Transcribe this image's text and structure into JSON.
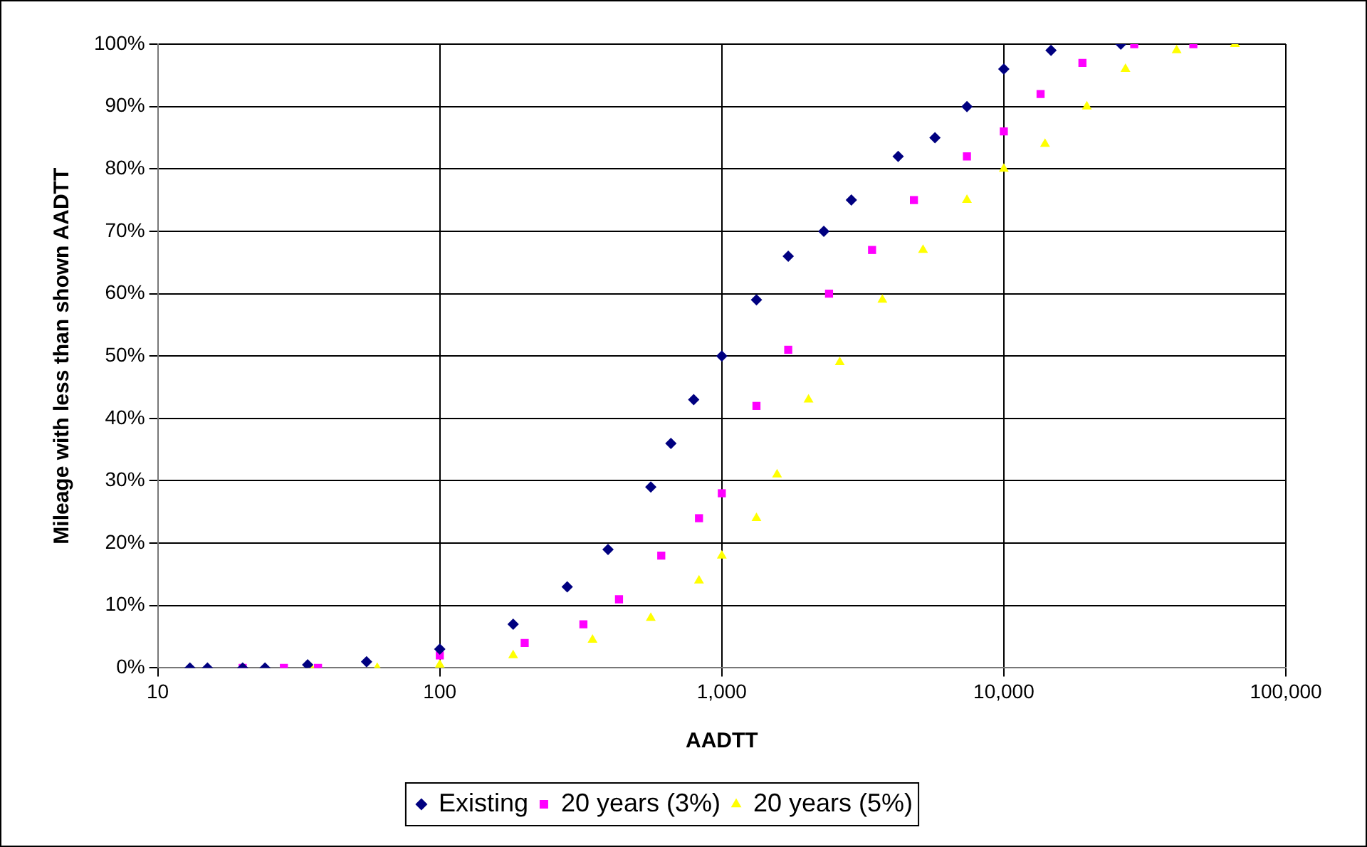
{
  "chart_data": {
    "type": "scatter",
    "xlabel": "AADTT",
    "ylabel": "Mileage with less than shown AADTT",
    "log": "x",
    "grid": true,
    "legend": "bottom",
    "xlim": [
      10,
      100000
    ],
    "xticks": [
      10,
      100,
      {
        "value": 1000,
        "label": "1,000"
      },
      {
        "value": 10000,
        "label": "10,000"
      },
      {
        "value": 100000,
        "label": "100,000"
      }
    ],
    "ylim": [
      0,
      100
    ],
    "yticks": [
      {
        "value": 0,
        "label": "0%"
      },
      {
        "value": 10,
        "label": "10%"
      },
      {
        "value": 20,
        "label": "20%"
      },
      {
        "value": 30,
        "label": "30%"
      },
      {
        "value": 40,
        "label": "40%"
      },
      {
        "value": 50,
        "label": "50%"
      },
      {
        "value": 60,
        "label": "60%"
      },
      {
        "value": 70,
        "label": "70%"
      },
      {
        "value": 80,
        "label": "80%"
      },
      {
        "value": 90,
        "label": "90%"
      },
      {
        "value": 100,
        "label": "100%"
      }
    ],
    "series": [
      {
        "name": "Existing",
        "color": "#000080",
        "marker": "diamond",
        "x": [
          13,
          15,
          20,
          24,
          34,
          55,
          100,
          182,
          283,
          395,
          560,
          660,
          795,
          1000,
          1327,
          1720,
          2300,
          2880,
          4220,
          5700,
          7400,
          10000,
          14700,
          26000
        ],
        "values": [
          0,
          0,
          0,
          0,
          0.5,
          1,
          3,
          7,
          13,
          19,
          29,
          36,
          43,
          50,
          59,
          66,
          70,
          75,
          82,
          85,
          90,
          96,
          99,
          100
        ]
      },
      {
        "name": "20 years (3%)",
        "color": "#ff00ff",
        "marker": "square",
        "x": [
          20,
          28,
          37,
          100,
          200,
          323,
          432,
          610,
          830,
          1000,
          1327,
          1720,
          2400,
          3410,
          4800,
          7400,
          10000,
          13500,
          19000,
          29000,
          47000
        ],
        "values": [
          0,
          0,
          0,
          2,
          4,
          7,
          11,
          18,
          24,
          28,
          42,
          51,
          60,
          67,
          75,
          82,
          86,
          92,
          97,
          100,
          100
        ]
      },
      {
        "name": "20 years (5%)",
        "color": "#ffff00",
        "marker": "triangle",
        "x": [
          35,
          60,
          100,
          182,
          348,
          560,
          830,
          1000,
          1327,
          1570,
          2030,
          2620,
          3710,
          5170,
          7400,
          10000,
          14000,
          19700,
          27000,
          41000,
          66000
        ],
        "values": [
          0,
          0,
          0.5,
          2,
          4.5,
          8,
          14,
          18,
          24,
          31,
          43,
          49,
          59,
          67,
          75,
          80,
          84,
          90,
          96,
          99,
          100
        ]
      }
    ]
  }
}
